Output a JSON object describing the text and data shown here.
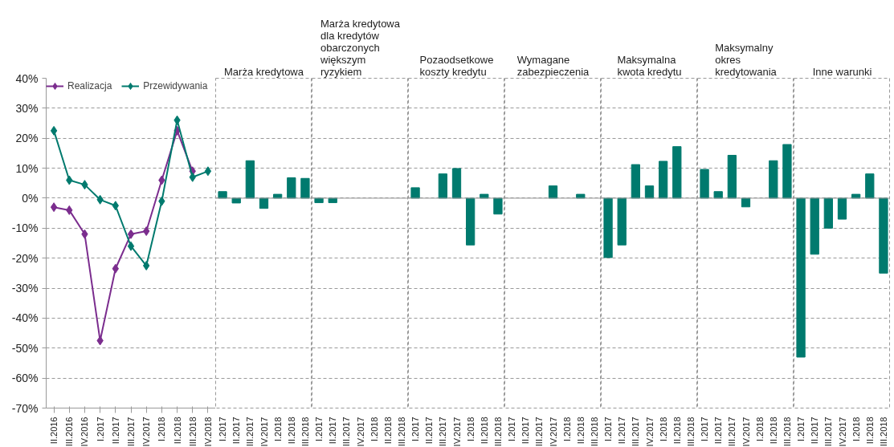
{
  "chart_data": [
    {
      "type": "line",
      "categories": [
        "II.2016",
        "III.2016",
        "IV.2016",
        "I.2017",
        "II.2017",
        "III.2017",
        "IV.2017",
        "I.2018",
        "II.2018",
        "III.2018",
        "IV.2018"
      ],
      "marker": "diamond",
      "legend": "top left",
      "grid": "y",
      "ylim": [
        -70,
        40
      ],
      "yticks": [
        {
          "value": 40,
          "label": "40%"
        },
        {
          "value": 30,
          "label": "30%"
        },
        {
          "value": 20,
          "label": "20%"
        },
        {
          "value": 10,
          "label": "10%"
        },
        {
          "value": 0,
          "label": "0%"
        },
        {
          "value": -10,
          "label": "-10%"
        },
        {
          "value": -20,
          "label": "-20%"
        },
        {
          "value": -30,
          "label": "-30%"
        },
        {
          "value": -40,
          "label": "-40%"
        },
        {
          "value": -50,
          "label": "-50%"
        },
        {
          "value": -60,
          "label": "-60%"
        },
        {
          "value": -70,
          "label": "-70%"
        }
      ],
      "series": [
        {
          "name": "Realizacja",
          "color": "#7b2d8e",
          "values": [
            -3,
            -4,
            -12,
            -47.5,
            -23.5,
            -12,
            -11,
            6,
            22.5,
            9,
            null
          ]
        },
        {
          "name": "Przewidywania",
          "color": "#007a6e",
          "values": [
            22.5,
            6,
            4.5,
            -0.5,
            -2.5,
            -16,
            -22.5,
            -1,
            26,
            7,
            9
          ]
        }
      ]
    },
    {
      "type": "bar",
      "title": "Marża kredytowa",
      "categories": [
        "I.2017",
        "II.2017",
        "III.2017",
        "IV.2017",
        "I.2018",
        "II.2018",
        "III.2018"
      ],
      "values": [
        2.2,
        -1.6,
        12.5,
        -3.4,
        1.3,
        6.8,
        6.6
      ],
      "color": "#007a6e",
      "ylim": [
        -70,
        40
      ],
      "yticks": [
        40,
        30,
        20,
        10,
        0,
        -10,
        -20,
        -30,
        -40,
        -50,
        -60,
        -70
      ],
      "grid": "y",
      "tick_labels": "x",
      "ref_lines": [
        {
          "axis": "y",
          "value": 0
        }
      ]
    },
    {
      "type": "bar",
      "title": "Marża kredytowa\ndla kredytów\nobarczonych\nwiększym\nryzykiem",
      "categories": [
        "I.2017",
        "II.2017",
        "III.2017",
        "IV.2017",
        "I.2018",
        "II.2018",
        "III.2018"
      ],
      "values": [
        -1.5,
        -1.5,
        null,
        null,
        null,
        null,
        null
      ],
      "color": "#007a6e",
      "ylim": [
        -70,
        40
      ],
      "yticks": [
        40,
        30,
        20,
        10,
        0,
        -10,
        -20,
        -30,
        -40,
        -50,
        -60,
        -70
      ],
      "grid": "y",
      "tick_labels": "x",
      "ref_lines": [
        {
          "axis": "y",
          "value": 0
        }
      ]
    },
    {
      "type": "bar",
      "title": "Pozaodsetkowe\nkoszty kredytu",
      "categories": [
        "I.2017",
        "II.2017",
        "III.2017",
        "IV.2017",
        "I.2018",
        "II.2018",
        "III.2018"
      ],
      "values": [
        3.5,
        null,
        8.1,
        9.9,
        -15.6,
        1.3,
        -5.3
      ],
      "color": "#007a6e",
      "ylim": [
        -70,
        40
      ],
      "yticks": [
        40,
        30,
        20,
        10,
        0,
        -10,
        -20,
        -30,
        -40,
        -50,
        -60,
        -70
      ],
      "grid": "y",
      "tick_labels": "x",
      "ref_lines": [
        {
          "axis": "y",
          "value": 0
        }
      ]
    },
    {
      "type": "bar",
      "title": "Wymagane\nzabezpieczenia",
      "categories": [
        "I.2017",
        "II.2017",
        "III.2017",
        "IV.2017",
        "I.2018",
        "II.2018",
        "III.2018"
      ],
      "values": [
        null,
        null,
        null,
        4.1,
        null,
        1.3,
        null
      ],
      "color": "#007a6e",
      "ylim": [
        -70,
        40
      ],
      "yticks": [
        40,
        30,
        20,
        10,
        0,
        -10,
        -20,
        -30,
        -40,
        -50,
        -60,
        -70
      ],
      "grid": "y",
      "tick_labels": "x",
      "ref_lines": [
        {
          "axis": "y",
          "value": 0
        }
      ]
    },
    {
      "type": "bar",
      "title": "Maksymalna\nkwota kredytu",
      "categories": [
        "I.2017",
        "II.2017",
        "III.2017",
        "IV.2017",
        "I.2018",
        "II.2018",
        "III.2018"
      ],
      "values": [
        -19.8,
        -15.6,
        11.2,
        4.1,
        12.3,
        17.2,
        null
      ],
      "color": "#007a6e",
      "ylim": [
        -70,
        40
      ],
      "yticks": [
        40,
        30,
        20,
        10,
        0,
        -10,
        -20,
        -30,
        -40,
        -50,
        -60,
        -70
      ],
      "grid": "y",
      "tick_labels": "x",
      "ref_lines": [
        {
          "axis": "y",
          "value": 0
        }
      ]
    },
    {
      "type": "bar",
      "title": "Maksymalny\nokres\nkredytowania",
      "categories": [
        "I.2017",
        "II.2017",
        "III.2017",
        "IV.2017",
        "I.2018",
        "II.2018",
        "III.2018"
      ],
      "values": [
        9.6,
        2.2,
        14.3,
        -2.9,
        null,
        12.5,
        17.9
      ],
      "color": "#007a6e",
      "ylim": [
        -70,
        40
      ],
      "yticks": [
        40,
        30,
        20,
        10,
        0,
        -10,
        -20,
        -30,
        -40,
        -50,
        -60,
        -70
      ],
      "grid": "y",
      "tick_labels": "x",
      "ref_lines": [
        {
          "axis": "y",
          "value": 0
        }
      ]
    },
    {
      "type": "bar",
      "title": "Inne warunki",
      "categories": [
        "I.2017",
        "II.2017",
        "III.2017",
        "IV.2017",
        "I.2018",
        "II.2018",
        "III.2018"
      ],
      "values": [
        -53,
        -18.7,
        -10,
        -7,
        1.3,
        8.1,
        -25
      ],
      "color": "#007a6e",
      "ylim": [
        -70,
        40
      ],
      "yticks": [
        40,
        30,
        20,
        10,
        0,
        -10,
        -20,
        -30,
        -40,
        -50,
        -60,
        -70
      ],
      "grid": "y",
      "tick_labels": "x",
      "ref_lines": [
        {
          "axis": "y",
          "value": 0
        }
      ]
    }
  ]
}
